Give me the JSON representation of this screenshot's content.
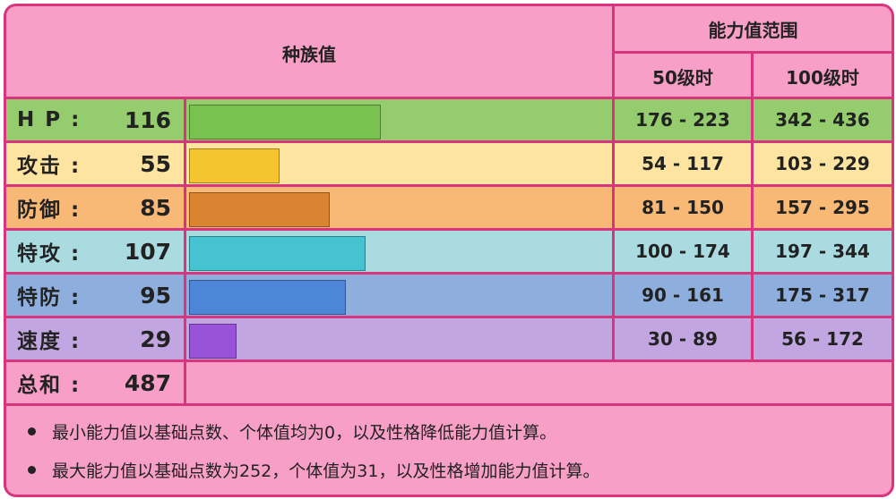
{
  "header": {
    "base_stats": "种族值",
    "stat_range": "能力值范围",
    "level50": "50级时",
    "level100": "100级时"
  },
  "stats": [
    {
      "name": "H P :",
      "value": "116",
      "base": 116,
      "lv50": "176 - 223",
      "lv100": "342 - 436",
      "bg": "#95cd6e",
      "bar": "#7ac24e"
    },
    {
      "name": "攻击 :",
      "value": "55",
      "base": 55,
      "lv50": "54 - 117",
      "lv100": "103 - 229",
      "bg": "#fde4a0",
      "bar": "#f4c52e"
    },
    {
      "name": "防御 :",
      "value": "85",
      "base": 85,
      "lv50": "81 - 150",
      "lv100": "157 - 295",
      "bg": "#f8b876",
      "bar": "#da8331"
    },
    {
      "name": "特攻 :",
      "value": "107",
      "base": 107,
      "lv50": "100 - 174",
      "lv100": "197 - 344",
      "bg": "#a9dbe1",
      "bar": "#45c3d1"
    },
    {
      "name": "特防 :",
      "value": "95",
      "base": 95,
      "lv50": "90 - 161",
      "lv100": "175 - 317",
      "bg": "#8eaede",
      "bar": "#4d86d7"
    },
    {
      "name": "速度 :",
      "value": "29",
      "base": 29,
      "lv50": "30 - 89",
      "lv100": "56 - 172",
      "bg": "#c2a6e1",
      "bar": "#9853d9"
    }
  ],
  "total": {
    "name": "总和 :",
    "value": "487"
  },
  "notes": [
    "最小能力值以基础点数、个体值均为0，以及性格降低能力值计算。",
    "最大能力值以基础点数为252，个体值为31，以及性格增加能力值计算。"
  ],
  "colors": {
    "border": "#d8357e",
    "background": "#f79fc6"
  }
}
